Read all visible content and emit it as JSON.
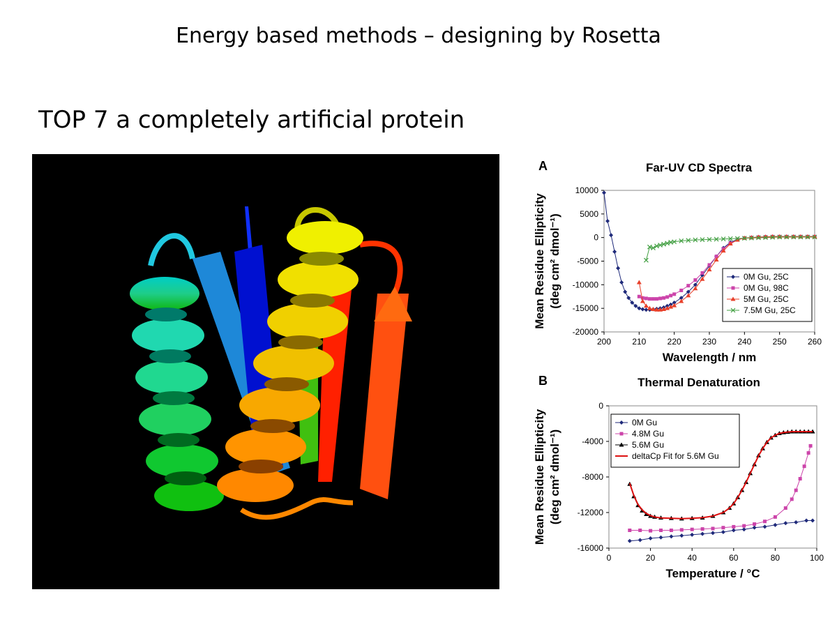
{
  "slide": {
    "title": "Energy based methods – designing by Rosetta",
    "subtitle": "TOP 7 a completely artificial protein"
  },
  "protein_image": {
    "description_icon": "protein-ribbon-structure",
    "colors": [
      "#0000ff",
      "#00aaff",
      "#00e0d0",
      "#00cc00",
      "#ffff00",
      "#ff9900",
      "#ff2200"
    ]
  },
  "chart_data": [
    {
      "panel_label": "A",
      "type": "line",
      "title": "Far-UV CD Spectra",
      "xlabel": "Wavelength / nm",
      "ylabel_line1": "Mean Residue Ellipticity",
      "ylabel_line2": "(deg cm² dmol⁻¹)",
      "xlim": [
        200,
        260
      ],
      "ylim": [
        -20000,
        10000
      ],
      "xticks": [
        "200",
        "210",
        "220",
        "230",
        "240",
        "250",
        "260"
      ],
      "yticks": [
        "10000",
        "5000",
        "0",
        "-5000",
        "-10000",
        "-15000",
        "-20000"
      ],
      "legend_position": "lower-right",
      "series": [
        {
          "name": "0M Gu, 25C",
          "color": "#1f2a7a",
          "marker": "diamond",
          "x": [
            200,
            201,
            202,
            203,
            204,
            205,
            206,
            207,
            208,
            209,
            210,
            211,
            212,
            213,
            214,
            215,
            216,
            217,
            218,
            219,
            220,
            222,
            224,
            226,
            228,
            230,
            232,
            234,
            236,
            238,
            240,
            242,
            244,
            246,
            248,
            250,
            252,
            254,
            256,
            258,
            260
          ],
          "y": [
            9500,
            3500,
            500,
            -3000,
            -6500,
            -9500,
            -11500,
            -12800,
            -13800,
            -14500,
            -15000,
            -15200,
            -15300,
            -15300,
            -15200,
            -15100,
            -15000,
            -14800,
            -14500,
            -14200,
            -13800,
            -12800,
            -11500,
            -10000,
            -8000,
            -6000,
            -4000,
            -2200,
            -1000,
            -400,
            -100,
            0,
            100,
            150,
            200,
            200,
            200,
            200,
            200,
            200,
            200
          ]
        },
        {
          "name": "0M Gu, 98C",
          "color": "#cc44aa",
          "marker": "square",
          "x": [
            210,
            211,
            212,
            213,
            214,
            215,
            216,
            217,
            218,
            219,
            220,
            222,
            224,
            226,
            228,
            230,
            232,
            234,
            236,
            238,
            240,
            242,
            244,
            246,
            248,
            250,
            252,
            254,
            256,
            258,
            260
          ],
          "y": [
            -12500,
            -12800,
            -12900,
            -13000,
            -13000,
            -13000,
            -12900,
            -12800,
            -12600,
            -12300,
            -12000,
            -11200,
            -10200,
            -9000,
            -7500,
            -5800,
            -4000,
            -2400,
            -1200,
            -500,
            -100,
            0,
            100,
            150,
            200,
            200,
            200,
            200,
            200,
            200,
            200
          ]
        },
        {
          "name": "5M Gu, 25C",
          "color": "#e8402a",
          "marker": "triangle",
          "x": [
            210,
            211,
            212,
            213,
            214,
            215,
            216,
            217,
            218,
            219,
            220,
            222,
            224,
            226,
            228,
            230,
            232,
            234,
            236,
            238,
            240,
            242,
            244,
            246,
            248,
            250,
            252,
            254,
            256,
            258,
            260
          ],
          "y": [
            -9500,
            -13500,
            -14500,
            -15000,
            -15200,
            -15300,
            -15300,
            -15200,
            -15000,
            -14700,
            -14400,
            -13500,
            -12300,
            -10800,
            -8800,
            -6800,
            -4700,
            -2800,
            -1300,
            -500,
            -100,
            0,
            100,
            150,
            200,
            200,
            200,
            200,
            200,
            200,
            200
          ]
        },
        {
          "name": "7.5M Gu, 25C",
          "color": "#44a044",
          "marker": "x",
          "x": [
            212,
            213,
            214,
            215,
            216,
            217,
            218,
            219,
            220,
            222,
            224,
            226,
            228,
            230,
            232,
            234,
            236,
            238,
            240,
            242,
            244,
            246,
            248,
            250,
            252,
            254,
            256,
            258,
            260
          ],
          "y": [
            -4800,
            -2000,
            -2200,
            -1800,
            -1600,
            -1400,
            -1200,
            -1000,
            -900,
            -700,
            -600,
            -500,
            -450,
            -400,
            -350,
            -300,
            -250,
            -200,
            -150,
            -100,
            -50,
            0,
            50,
            100,
            100,
            100,
            100,
            100,
            100
          ]
        }
      ]
    },
    {
      "panel_label": "B",
      "type": "line",
      "title": "Thermal Denaturation",
      "xlabel": "Temperature / °C",
      "ylabel_line1": "Mean Residue Ellipticity",
      "ylabel_line2": "(deg cm² dmol⁻¹)",
      "xlim": [
        0,
        100
      ],
      "ylim": [
        -16000,
        0
      ],
      "xticks": [
        "0",
        "20",
        "40",
        "60",
        "80",
        "100"
      ],
      "yticks": [
        "0",
        "-4000",
        "-8000",
        "-12000",
        "-16000"
      ],
      "legend_position": "top-left",
      "series": [
        {
          "name": "0M Gu",
          "color": "#1f2a7a",
          "marker": "diamond",
          "x": [
            10,
            15,
            20,
            25,
            30,
            35,
            40,
            45,
            50,
            55,
            60,
            65,
            70,
            75,
            80,
            85,
            90,
            95,
            98
          ],
          "y": [
            -15200,
            -15100,
            -14900,
            -14800,
            -14700,
            -14600,
            -14500,
            -14400,
            -14300,
            -14200,
            -14000,
            -13900,
            -13700,
            -13600,
            -13400,
            -13200,
            -13100,
            -12900,
            -12900
          ]
        },
        {
          "name": "4.8M Gu",
          "color": "#cc44aa",
          "marker": "square",
          "x": [
            10,
            15,
            20,
            25,
            30,
            35,
            40,
            45,
            50,
            55,
            60,
            65,
            70,
            75,
            80,
            85,
            88,
            90,
            92,
            94,
            96,
            97
          ],
          "y": [
            -14000,
            -14000,
            -14050,
            -14000,
            -14000,
            -13950,
            -13900,
            -13850,
            -13800,
            -13700,
            -13600,
            -13500,
            -13300,
            -13000,
            -12500,
            -11500,
            -10500,
            -9500,
            -8200,
            -6800,
            -5300,
            -4500
          ]
        },
        {
          "name": "5.6M Gu",
          "color": "#000000",
          "marker": "triangle",
          "x": [
            10,
            12,
            14,
            16,
            18,
            20,
            22,
            25,
            30,
            35,
            40,
            45,
            50,
            55,
            58,
            60,
            62,
            64,
            66,
            68,
            70,
            72,
            74,
            76,
            78,
            80,
            82,
            84,
            86,
            88,
            90,
            92,
            94,
            96,
            98
          ],
          "y": [
            -8800,
            -10200,
            -11200,
            -11800,
            -12200,
            -12400,
            -12500,
            -12600,
            -12650,
            -12700,
            -12650,
            -12600,
            -12400,
            -12000,
            -11500,
            -11000,
            -10300,
            -9500,
            -8600,
            -7600,
            -6600,
            -5600,
            -4800,
            -4100,
            -3600,
            -3300,
            -3100,
            -3000,
            -2950,
            -2900,
            -2900,
            -2900,
            -2900,
            -2900,
            -2900
          ]
        },
        {
          "name": "deltaCp Fit for 5.6M Gu",
          "color": "#dd1111",
          "marker": "none",
          "x": [
            10,
            12,
            14,
            16,
            18,
            20,
            22,
            25,
            30,
            35,
            40,
            45,
            50,
            55,
            58,
            60,
            62,
            64,
            66,
            68,
            70,
            72,
            74,
            76,
            78,
            80,
            82,
            84,
            86,
            88,
            90,
            92,
            94,
            96,
            98
          ],
          "y": [
            -8700,
            -10100,
            -11100,
            -11700,
            -12100,
            -12350,
            -12500,
            -12600,
            -12650,
            -12680,
            -12650,
            -12580,
            -12400,
            -12000,
            -11500,
            -11000,
            -10300,
            -9500,
            -8600,
            -7600,
            -6600,
            -5600,
            -4800,
            -4100,
            -3600,
            -3300,
            -3100,
            -3000,
            -2950,
            -2900,
            -2900,
            -2900,
            -2900,
            -2900,
            -2900
          ]
        }
      ]
    }
  ]
}
